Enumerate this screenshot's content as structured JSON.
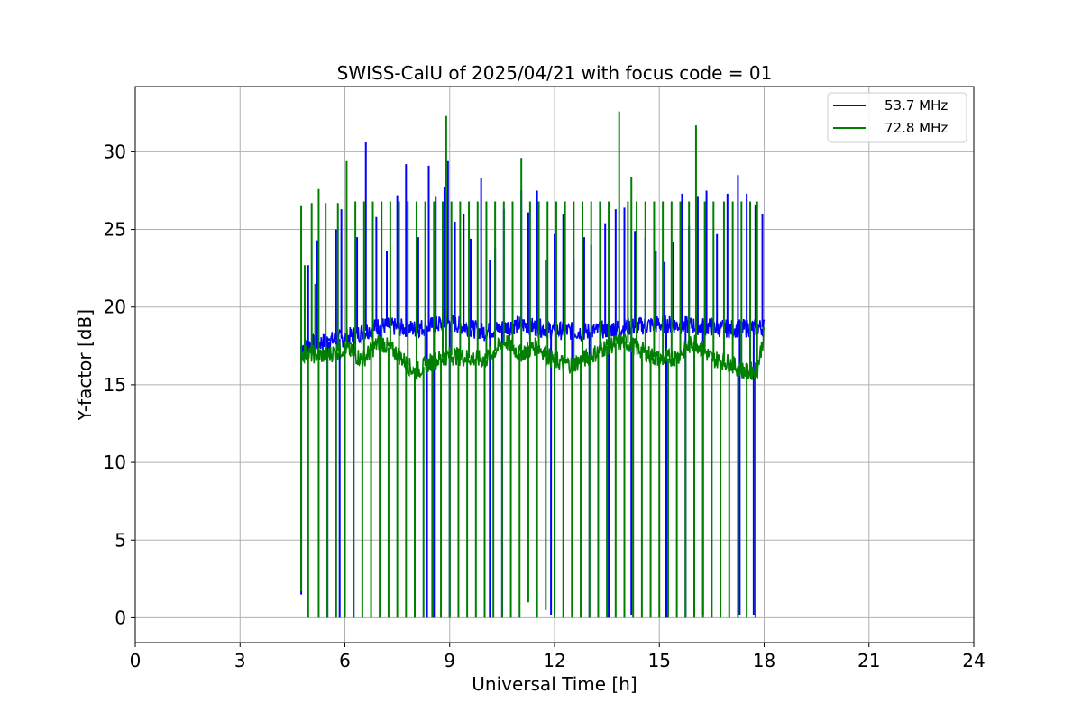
{
  "chart_data": {
    "type": "line",
    "title": "SWISS-CalU of 2025/04/21 with focus code = 01",
    "xlabel": "Universal Time [h]",
    "ylabel": "Y-factor [dB]",
    "xlim": [
      0,
      24
    ],
    "ylim": [
      -1.6,
      34.2
    ],
    "xticks": [
      0,
      3,
      6,
      9,
      12,
      15,
      18,
      21,
      24
    ],
    "yticks": [
      0,
      5,
      10,
      15,
      20,
      25,
      30
    ],
    "grid": true,
    "legend_position": "upper right",
    "series": [
      {
        "name": "53.7 MHz",
        "color": "#0000ff",
        "baseline": [
          [
            4.75,
            17.5
          ],
          [
            5.5,
            17.8
          ],
          [
            6.0,
            18.0
          ],
          [
            7.0,
            18.8
          ],
          [
            8.0,
            18.6
          ],
          [
            9.0,
            19.0
          ],
          [
            10.0,
            18.4
          ],
          [
            11.0,
            18.9
          ],
          [
            12.0,
            18.5
          ],
          [
            13.0,
            18.4
          ],
          [
            14.0,
            18.7
          ],
          [
            15.0,
            18.9
          ],
          [
            16.0,
            18.8
          ],
          [
            17.0,
            18.6
          ],
          [
            18.0,
            18.7
          ]
        ],
        "spikes_high": [
          [
            4.95,
            22.7
          ],
          [
            5.2,
            24.3
          ],
          [
            5.55,
            18.0
          ],
          [
            5.75,
            25.0
          ],
          [
            5.9,
            26.3
          ],
          [
            6.35,
            24.5
          ],
          [
            6.6,
            30.6
          ],
          [
            6.9,
            25.8
          ],
          [
            7.2,
            23.6
          ],
          [
            7.5,
            27.2
          ],
          [
            7.75,
            29.2
          ],
          [
            8.1,
            24.5
          ],
          [
            8.4,
            29.1
          ],
          [
            8.6,
            27.1
          ],
          [
            8.85,
            27.7
          ],
          [
            8.95,
            29.4
          ],
          [
            9.15,
            25.5
          ],
          [
            9.4,
            26.0
          ],
          [
            9.6,
            24.4
          ],
          [
            9.9,
            28.3
          ],
          [
            10.15,
            23.0
          ],
          [
            10.3,
            23.8
          ],
          [
            10.55,
            26.3
          ],
          [
            10.8,
            25.0
          ],
          [
            11.05,
            27.5
          ],
          [
            11.25,
            26.1
          ],
          [
            11.5,
            27.5
          ],
          [
            11.75,
            23.0
          ],
          [
            12.0,
            24.7
          ],
          [
            12.25,
            26.0
          ],
          [
            12.55,
            23.0
          ],
          [
            12.85,
            24.5
          ],
          [
            13.05,
            24.0
          ],
          [
            13.45,
            25.4
          ],
          [
            13.75,
            26.3
          ],
          [
            14.0,
            26.4
          ],
          [
            14.3,
            24.9
          ],
          [
            14.6,
            24.5
          ],
          [
            14.9,
            23.6
          ],
          [
            15.15,
            22.9
          ],
          [
            15.4,
            24.2
          ],
          [
            15.65,
            27.3
          ],
          [
            15.85,
            25.2
          ],
          [
            16.1,
            27.1
          ],
          [
            16.35,
            27.5
          ],
          [
            16.65,
            24.7
          ],
          [
            16.95,
            27.3
          ],
          [
            17.25,
            28.5
          ],
          [
            17.5,
            27.3
          ],
          [
            17.75,
            26.6
          ],
          [
            17.95,
            26.0
          ]
        ],
        "spikes_low": [
          [
            4.75,
            1.5
          ],
          [
            5.5,
            0.0
          ],
          [
            5.85,
            0.0
          ],
          [
            6.25,
            0.0
          ],
          [
            7.0,
            0.0
          ],
          [
            8.35,
            0.0
          ],
          [
            8.55,
            0.0
          ],
          [
            9.0,
            0.0
          ],
          [
            10.15,
            0.0
          ],
          [
            10.5,
            0.0
          ],
          [
            11.9,
            0.2
          ],
          [
            12.5,
            0.2
          ],
          [
            13.0,
            0.0
          ],
          [
            13.55,
            0.0
          ],
          [
            14.2,
            0.2
          ],
          [
            15.2,
            0.0
          ],
          [
            15.75,
            0.0
          ],
          [
            16.25,
            0.2
          ],
          [
            17.3,
            0.2
          ],
          [
            17.7,
            0.2
          ]
        ]
      },
      {
        "name": "72.8 MHz",
        "color": "#008000",
        "baseline": [
          [
            4.75,
            17.0
          ],
          [
            5.5,
            16.9
          ],
          [
            6.0,
            17.4
          ],
          [
            6.5,
            16.6
          ],
          [
            7.0,
            17.8
          ],
          [
            7.5,
            17.0
          ],
          [
            8.0,
            15.8
          ],
          [
            8.5,
            16.5
          ],
          [
            9.0,
            16.9
          ],
          [
            10.0,
            16.6
          ],
          [
            10.6,
            17.8
          ],
          [
            11.0,
            17.0
          ],
          [
            11.5,
            17.5
          ],
          [
            12.0,
            16.5
          ],
          [
            12.5,
            16.3
          ],
          [
            13.0,
            16.8
          ],
          [
            13.5,
            17.5
          ],
          [
            14.0,
            17.8
          ],
          [
            14.5,
            17.2
          ],
          [
            15.0,
            16.6
          ],
          [
            15.5,
            16.8
          ],
          [
            16.0,
            17.8
          ],
          [
            16.5,
            16.7
          ],
          [
            17.0,
            16.4
          ],
          [
            17.5,
            15.8
          ],
          [
            17.8,
            16.0
          ],
          [
            18.0,
            18.3
          ]
        ],
        "spikes_high": [
          [
            4.75,
            26.5
          ],
          [
            4.85,
            22.7
          ],
          [
            5.05,
            26.7
          ],
          [
            5.15,
            21.5
          ],
          [
            5.25,
            27.6
          ],
          [
            5.45,
            26.7
          ],
          [
            5.8,
            26.7
          ],
          [
            6.05,
            29.4
          ],
          [
            6.3,
            26.8
          ],
          [
            6.55,
            26.8
          ],
          [
            6.8,
            26.8
          ],
          [
            7.05,
            26.8
          ],
          [
            7.3,
            26.8
          ],
          [
            7.55,
            26.8
          ],
          [
            7.8,
            26.8
          ],
          [
            8.05,
            26.8
          ],
          [
            8.3,
            26.8
          ],
          [
            8.55,
            26.8
          ],
          [
            8.8,
            26.8
          ],
          [
            8.9,
            32.3
          ],
          [
            9.05,
            26.8
          ],
          [
            9.3,
            26.8
          ],
          [
            9.55,
            26.8
          ],
          [
            9.8,
            26.8
          ],
          [
            10.05,
            26.8
          ],
          [
            10.3,
            26.8
          ],
          [
            10.55,
            26.8
          ],
          [
            10.8,
            26.8
          ],
          [
            11.05,
            29.6
          ],
          [
            11.3,
            26.8
          ],
          [
            11.55,
            26.8
          ],
          [
            11.8,
            26.8
          ],
          [
            12.05,
            26.8
          ],
          [
            12.3,
            26.8
          ],
          [
            12.55,
            26.8
          ],
          [
            12.8,
            26.8
          ],
          [
            13.05,
            26.8
          ],
          [
            13.3,
            26.8
          ],
          [
            13.55,
            26.8
          ],
          [
            13.85,
            32.6
          ],
          [
            14.1,
            26.8
          ],
          [
            14.2,
            28.4
          ],
          [
            14.35,
            26.8
          ],
          [
            14.6,
            26.8
          ],
          [
            14.85,
            26.8
          ],
          [
            15.1,
            26.8
          ],
          [
            15.35,
            26.8
          ],
          [
            15.6,
            26.8
          ],
          [
            15.85,
            26.8
          ],
          [
            16.05,
            31.7
          ],
          [
            16.3,
            26.8
          ],
          [
            16.55,
            26.8
          ],
          [
            16.85,
            26.8
          ],
          [
            17.1,
            26.8
          ],
          [
            17.35,
            26.8
          ],
          [
            17.6,
            26.8
          ],
          [
            17.8,
            26.8
          ]
        ],
        "spikes_low": [
          [
            4.75,
            1.7
          ],
          [
            4.95,
            0.0
          ],
          [
            5.25,
            0.0
          ],
          [
            5.5,
            0.0
          ],
          [
            5.75,
            0.0
          ],
          [
            6.0,
            0.0
          ],
          [
            6.25,
            0.0
          ],
          [
            6.5,
            0.0
          ],
          [
            6.75,
            0.0
          ],
          [
            7.0,
            0.0
          ],
          [
            7.25,
            0.0
          ],
          [
            7.5,
            0.0
          ],
          [
            7.75,
            0.0
          ],
          [
            8.0,
            0.0
          ],
          [
            8.25,
            0.0
          ],
          [
            8.5,
            0.0
          ],
          [
            8.75,
            0.0
          ],
          [
            9.0,
            0.0
          ],
          [
            9.25,
            0.0
          ],
          [
            9.5,
            0.0
          ],
          [
            9.75,
            0.0
          ],
          [
            10.0,
            0.0
          ],
          [
            10.25,
            0.0
          ],
          [
            10.5,
            0.0
          ],
          [
            10.75,
            0.0
          ],
          [
            11.0,
            0.0
          ],
          [
            11.25,
            1.0
          ],
          [
            11.5,
            0.0
          ],
          [
            11.75,
            0.5
          ],
          [
            12.0,
            0.0
          ],
          [
            12.25,
            0.0
          ],
          [
            12.5,
            0.0
          ],
          [
            12.75,
            0.0
          ],
          [
            13.0,
            0.0
          ],
          [
            13.25,
            0.0
          ],
          [
            13.5,
            0.0
          ],
          [
            13.75,
            0.0
          ],
          [
            14.0,
            0.0
          ],
          [
            14.25,
            0.0
          ],
          [
            14.5,
            0.0
          ],
          [
            14.75,
            0.0
          ],
          [
            15.0,
            0.0
          ],
          [
            15.25,
            0.0
          ],
          [
            15.5,
            0.0
          ],
          [
            15.75,
            0.0
          ],
          [
            16.0,
            0.0
          ],
          [
            16.25,
            0.0
          ],
          [
            16.5,
            0.0
          ],
          [
            16.75,
            0.0
          ],
          [
            17.0,
            0.0
          ],
          [
            17.25,
            0.0
          ],
          [
            17.5,
            0.0
          ],
          [
            17.75,
            0.0
          ]
        ]
      }
    ]
  }
}
